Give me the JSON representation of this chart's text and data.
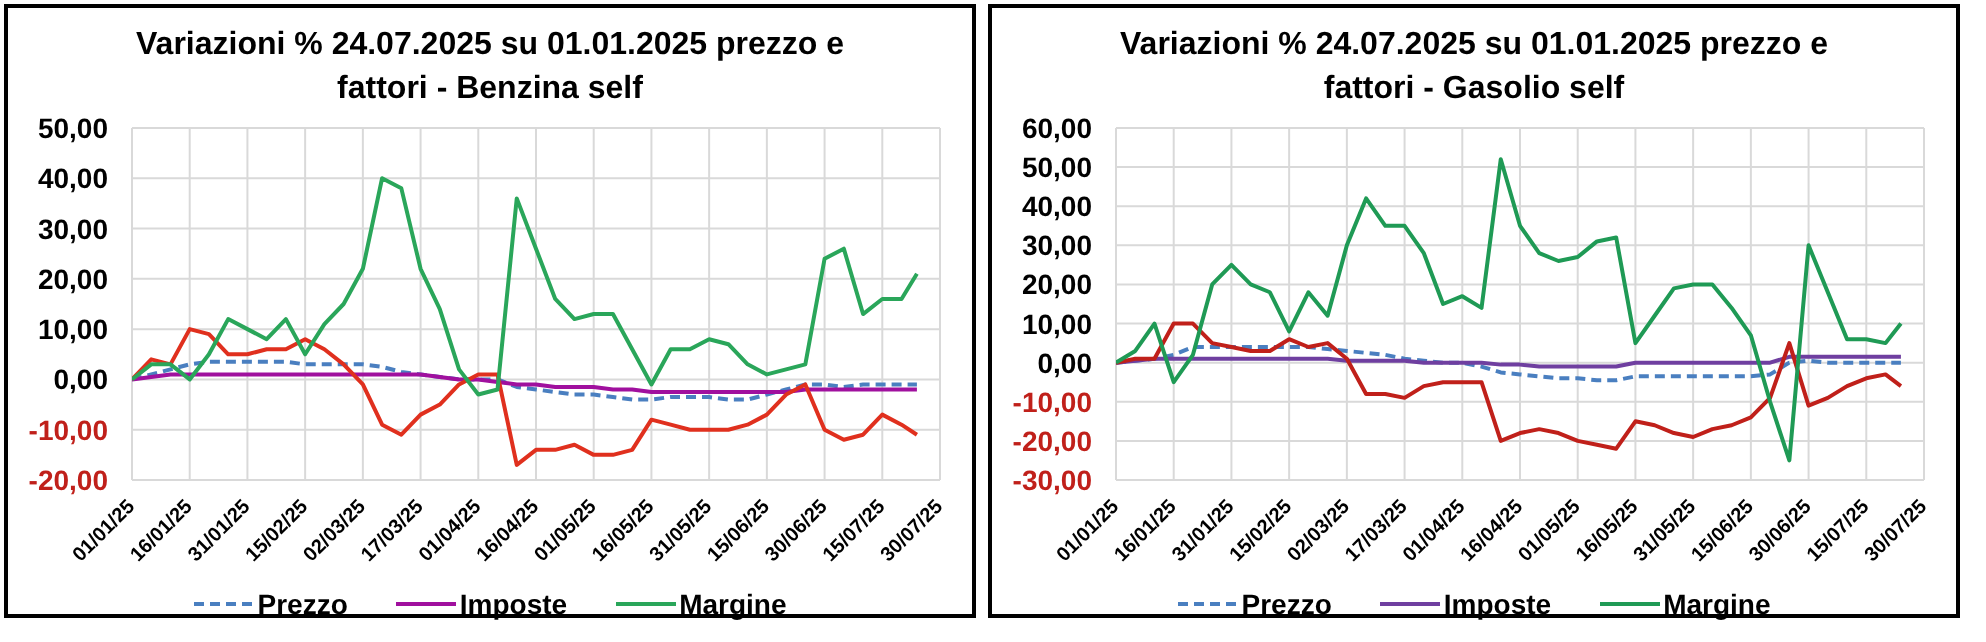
{
  "chart_data": [
    {
      "type": "line",
      "title": "Variazioni % 24.07.2025 su 01.01.2025 prezzo e fattori - Benzina self",
      "x": [
        "2025-01-01",
        "2025-01-06",
        "2025-01-11",
        "2025-01-16",
        "2025-01-21",
        "2025-01-26",
        "2025-01-31",
        "2025-02-05",
        "2025-02-10",
        "2025-02-15",
        "2025-02-20",
        "2025-02-25",
        "2025-03-02",
        "2025-03-07",
        "2025-03-12",
        "2025-03-17",
        "2025-03-22",
        "2025-03-27",
        "2025-04-01",
        "2025-04-06",
        "2025-04-11",
        "2025-04-16",
        "2025-04-21",
        "2025-04-26",
        "2025-05-01",
        "2025-05-06",
        "2025-05-11",
        "2025-05-16",
        "2025-05-21",
        "2025-05-26",
        "2025-05-31",
        "2025-06-05",
        "2025-06-10",
        "2025-06-15",
        "2025-06-20",
        "2025-06-25",
        "2025-06-30",
        "2025-07-05",
        "2025-07-10",
        "2025-07-15",
        "2025-07-20",
        "2025-07-24"
      ],
      "series": [
        {
          "name": "Prezzo",
          "color": "#4a7fc0",
          "line_style": "dashed",
          "values": [
            0,
            1,
            2,
            3,
            3.5,
            3.5,
            3.5,
            3.5,
            3.5,
            3,
            3,
            3,
            3,
            2.5,
            1.5,
            1,
            0.5,
            0,
            0,
            0,
            -1.5,
            -2,
            -2.5,
            -3,
            -3,
            -3.5,
            -4,
            -4,
            -3.5,
            -3.5,
            -3.5,
            -4,
            -4,
            -3,
            -2,
            -1,
            -1,
            -1.5,
            -1,
            -1,
            -1,
            -1
          ]
        },
        {
          "name": "Imposte",
          "color": "#a0109e",
          "values": [
            0,
            0.5,
            1,
            1,
            1,
            1,
            1,
            1,
            1,
            1,
            1,
            1,
            1,
            1,
            1,
            1,
            0.5,
            0,
            0,
            -0.5,
            -1,
            -1,
            -1.5,
            -1.5,
            -1.5,
            -2,
            -2,
            -2.5,
            -2.5,
            -2.5,
            -2.5,
            -2.5,
            -2.5,
            -2.5,
            -2.5,
            -2,
            -2,
            -2,
            -2,
            -2,
            -2,
            -2
          ]
        },
        {
          "color": "#e0301e",
          "values": [
            0,
            4,
            3,
            10,
            9,
            5,
            5,
            6,
            6,
            8,
            6,
            3,
            -1,
            -9,
            -11,
            -7,
            -5,
            -1,
            1,
            1,
            -17,
            -14,
            -14,
            -13,
            -15,
            -15,
            -14,
            -8,
            -9,
            -10,
            -10,
            -10,
            -9,
            -7,
            -3,
            -1,
            -10,
            -12,
            -11,
            -7,
            -9,
            -11
          ]
        },
        {
          "name": "Margine",
          "color": "#2aa65a",
          "values": [
            0,
            3,
            3,
            0,
            5,
            12,
            10,
            8,
            12,
            5,
            11,
            15,
            22,
            40,
            38,
            22,
            14,
            2,
            -3,
            -2,
            36,
            26,
            16,
            12,
            13,
            13,
            6,
            -1,
            6,
            6,
            8,
            7,
            3,
            1,
            2,
            3,
            24,
            26,
            13,
            16,
            16,
            21
          ]
        }
      ],
      "xlim": [
        "2025-01-01",
        "2025-07-30"
      ],
      "xticks": [
        {
          "value": "2025-01-01",
          "label": "01/01/25"
        },
        {
          "value": "2025-01-16",
          "label": "16/01/25"
        },
        {
          "value": "2025-01-31",
          "label": "31/01/25"
        },
        {
          "value": "2025-02-15",
          "label": "15/02/25"
        },
        {
          "value": "2025-03-02",
          "label": "02/03/25"
        },
        {
          "value": "2025-03-17",
          "label": "17/03/25"
        },
        {
          "value": "2025-04-01",
          "label": "01/04/25"
        },
        {
          "value": "2025-04-16",
          "label": "16/04/25"
        },
        {
          "value": "2025-05-01",
          "label": "01/05/25"
        },
        {
          "value": "2025-05-16",
          "label": "16/05/25"
        },
        {
          "value": "2025-05-31",
          "label": "31/05/25"
        },
        {
          "value": "2025-06-15",
          "label": "15/06/25"
        },
        {
          "value": "2025-06-30",
          "label": "30/06/25"
        },
        {
          "value": "2025-07-15",
          "label": "15/07/25"
        },
        {
          "value": "2025-07-30",
          "label": "30/07/25"
        }
      ],
      "ylim": [
        -20,
        50
      ],
      "yticks": [
        {
          "value": -20,
          "label": "-20,00"
        },
        {
          "value": -10,
          "label": "-10,00"
        },
        {
          "value": 0,
          "label": "0,00"
        },
        {
          "value": 10,
          "label": "10,00"
        },
        {
          "value": 20,
          "label": "20,00"
        },
        {
          "value": 30,
          "label": "30,00"
        },
        {
          "value": 40,
          "label": "40,00"
        },
        {
          "value": 50,
          "label": "50,00"
        }
      ],
      "grid": true,
      "legend": "bottom",
      "marker": "none"
    },
    {
      "type": "line",
      "title": "Variazioni % 24.07.2025 su 01.01.2025 prezzo e fattori - Gasolio self",
      "x": [
        "2025-01-01",
        "2025-01-06",
        "2025-01-11",
        "2025-01-16",
        "2025-01-21",
        "2025-01-26",
        "2025-01-31",
        "2025-02-05",
        "2025-02-10",
        "2025-02-15",
        "2025-02-20",
        "2025-02-25",
        "2025-03-02",
        "2025-03-07",
        "2025-03-12",
        "2025-03-17",
        "2025-03-22",
        "2025-03-27",
        "2025-04-01",
        "2025-04-06",
        "2025-04-11",
        "2025-04-16",
        "2025-04-21",
        "2025-04-26",
        "2025-05-01",
        "2025-05-06",
        "2025-05-11",
        "2025-05-16",
        "2025-05-21",
        "2025-05-26",
        "2025-05-31",
        "2025-06-05",
        "2025-06-10",
        "2025-06-15",
        "2025-06-20",
        "2025-06-25",
        "2025-06-30",
        "2025-07-05",
        "2025-07-10",
        "2025-07-15",
        "2025-07-20",
        "2025-07-24"
      ],
      "series": [
        {
          "name": "Prezzo",
          "color": "#4a7fc0",
          "line_style": "dashed",
          "values": [
            0,
            0.5,
            1,
            2,
            4,
            4,
            4,
            4,
            4,
            4,
            4,
            3.5,
            3,
            2.5,
            2,
            1,
            0.5,
            0,
            0,
            -1,
            -2.5,
            -3,
            -3.5,
            -4,
            -4,
            -4.5,
            -4.5,
            -3.5,
            -3.5,
            -3.5,
            -3.5,
            -3.5,
            -3.5,
            -3.5,
            -3,
            0,
            0.5,
            0,
            0,
            0,
            0,
            0
          ]
        },
        {
          "name": "Imposte",
          "color": "#6f3fa0",
          "values": [
            0,
            0.5,
            1,
            1,
            1,
            1,
            1,
            1,
            1,
            1,
            1,
            1,
            0.5,
            0.5,
            0.5,
            0.5,
            0,
            0,
            0,
            0,
            -0.5,
            -0.5,
            -1,
            -1,
            -1,
            -1,
            -1,
            0,
            0,
            0,
            0,
            0,
            0,
            0,
            0,
            1.5,
            1.5,
            1.5,
            1.5,
            1.5,
            1.5,
            1.5
          ]
        },
        {
          "color": "#c0201a",
          "values": [
            0,
            1,
            1,
            10,
            10,
            5,
            4,
            3,
            3,
            6,
            4,
            5,
            1,
            -8,
            -8,
            -9,
            -6,
            -5,
            -5,
            -5,
            -20,
            -18,
            -17,
            -18,
            -20,
            -21,
            -22,
            -15,
            -16,
            -18,
            -19,
            -17,
            -16,
            -14,
            -9,
            5,
            -11,
            -9,
            -6,
            -4,
            -3,
            -6
          ]
        },
        {
          "name": "Margine",
          "color": "#1f9a55",
          "values": [
            0,
            3,
            10,
            -5,
            2,
            20,
            25,
            20,
            18,
            8,
            18,
            12,
            30,
            42,
            35,
            35,
            28,
            15,
            17,
            14,
            52,
            35,
            28,
            26,
            27,
            31,
            32,
            5,
            12,
            19,
            20,
            20,
            14,
            7,
            -10,
            -25,
            30,
            18,
            6,
            6,
            5,
            10
          ]
        }
      ],
      "xlim": [
        "2025-01-01",
        "2025-07-30"
      ],
      "xticks": [
        {
          "value": "2025-01-01",
          "label": "01/01/25"
        },
        {
          "value": "2025-01-16",
          "label": "16/01/25"
        },
        {
          "value": "2025-01-31",
          "label": "31/01/25"
        },
        {
          "value": "2025-02-15",
          "label": "15/02/25"
        },
        {
          "value": "2025-03-02",
          "label": "02/03/25"
        },
        {
          "value": "2025-03-17",
          "label": "17/03/25"
        },
        {
          "value": "2025-04-01",
          "label": "01/04/25"
        },
        {
          "value": "2025-04-16",
          "label": "16/04/25"
        },
        {
          "value": "2025-05-01",
          "label": "01/05/25"
        },
        {
          "value": "2025-05-16",
          "label": "16/05/25"
        },
        {
          "value": "2025-05-31",
          "label": "31/05/25"
        },
        {
          "value": "2025-06-15",
          "label": "15/06/25"
        },
        {
          "value": "2025-06-30",
          "label": "30/06/25"
        },
        {
          "value": "2025-07-15",
          "label": "15/07/25"
        },
        {
          "value": "2025-07-30",
          "label": "30/07/25"
        }
      ],
      "ylim": [
        -30,
        60
      ],
      "yticks": [
        {
          "value": -30,
          "label": "-30,00"
        },
        {
          "value": -20,
          "label": "-20,00"
        },
        {
          "value": -10,
          "label": "-10,00"
        },
        {
          "value": 0,
          "label": "0,00"
        },
        {
          "value": 10,
          "label": "10,00"
        },
        {
          "value": 20,
          "label": "20,00"
        },
        {
          "value": 30,
          "label": "30,00"
        },
        {
          "value": 40,
          "label": "40,00"
        },
        {
          "value": 50,
          "label": "50,00"
        },
        {
          "value": 60,
          "label": "60,00"
        }
      ],
      "grid": true,
      "legend": "bottom",
      "marker": "none"
    }
  ]
}
